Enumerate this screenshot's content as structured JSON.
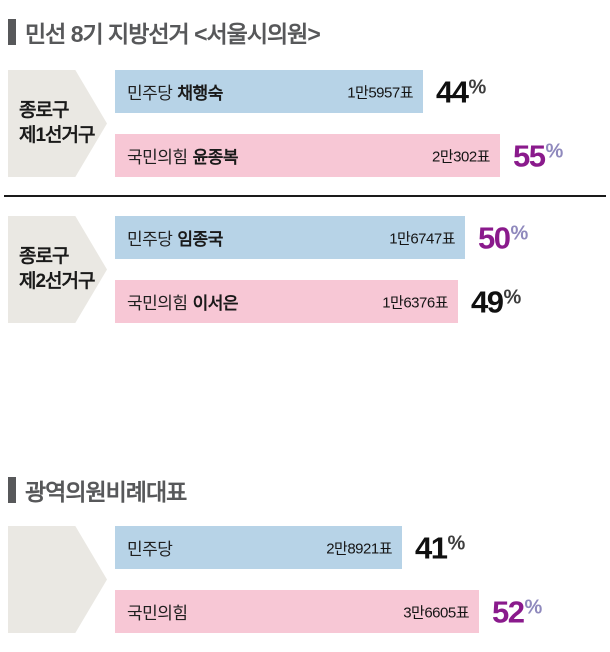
{
  "colors": {
    "dem_blue": "#b7d3e7",
    "ppp_pink": "#f7c7d5",
    "arrow_gray": "#eae8e3",
    "heading_gray": "#57585a",
    "divider_dark": "#1a1a1a",
    "winner_purple": "#8a1a8c",
    "winner_percent_lavender": "#8f89bd",
    "loser_black": "#101010"
  },
  "percent_sign": "%",
  "sections": [
    {
      "title": "민선 8기 지방선거 <서울시의원>",
      "races": [
        {
          "district_line1": "종로구",
          "district_line2": "제1선거구",
          "bars": [
            {
              "party": "민주당",
              "candidate": "채행숙",
              "votes": "1만5957표",
              "pct": 44,
              "winner": false
            },
            {
              "party": "국민의힘",
              "candidate": "윤종복",
              "votes": "2만302표",
              "pct": 55,
              "winner": true
            }
          ]
        },
        {
          "district_line1": "종로구",
          "district_line2": "제2선거구",
          "bars": [
            {
              "party": "민주당",
              "candidate": "임종국",
              "votes": "1만6747표",
              "pct": 50,
              "winner": true
            },
            {
              "party": "국민의힘",
              "candidate": "이서은",
              "votes": "1만6376표",
              "pct": 49,
              "winner": false
            }
          ]
        }
      ]
    },
    {
      "title": "광역의원비례대표",
      "races": [
        {
          "district_line1": "",
          "district_line2": "",
          "bars": [
            {
              "party": "민주당",
              "candidate": "",
              "votes": "2만8921표",
              "pct": 41,
              "winner": false
            },
            {
              "party": "국민의힘",
              "candidate": "",
              "votes": "3만6605표",
              "pct": 52,
              "winner": true
            }
          ]
        }
      ]
    }
  ],
  "chart_data": [
    {
      "type": "bar",
      "orientation": "horizontal",
      "title": "민선 8기 지방선거 <서울시의원> — 종로구 제1선거구",
      "categories": [
        "민주당 채행숙",
        "국민의힘 윤종복"
      ],
      "values": [
        44,
        55
      ],
      "value_labels": [
        "1만5957표",
        "2만302표"
      ],
      "unit": "%",
      "xlim": [
        0,
        100
      ],
      "colors": [
        "#b7d3e7",
        "#f7c7d5"
      ],
      "winner": "국민의힘 윤종복"
    },
    {
      "type": "bar",
      "orientation": "horizontal",
      "title": "민선 8기 지방선거 <서울시의원> — 종로구 제2선거구",
      "categories": [
        "민주당 임종국",
        "국민의힘 이서은"
      ],
      "values": [
        50,
        49
      ],
      "value_labels": [
        "1만6747표",
        "1만6376표"
      ],
      "unit": "%",
      "xlim": [
        0,
        100
      ],
      "colors": [
        "#b7d3e7",
        "#f7c7d5"
      ],
      "winner": "민주당 임종국"
    },
    {
      "type": "bar",
      "orientation": "horizontal",
      "title": "광역의원비례대표",
      "categories": [
        "민주당",
        "국민의힘"
      ],
      "values": [
        41,
        52
      ],
      "value_labels": [
        "2만8921표",
        "3만6605표"
      ],
      "unit": "%",
      "xlim": [
        0,
        100
      ],
      "colors": [
        "#b7d3e7",
        "#f7c7d5"
      ],
      "winner": "국민의힘"
    }
  ]
}
